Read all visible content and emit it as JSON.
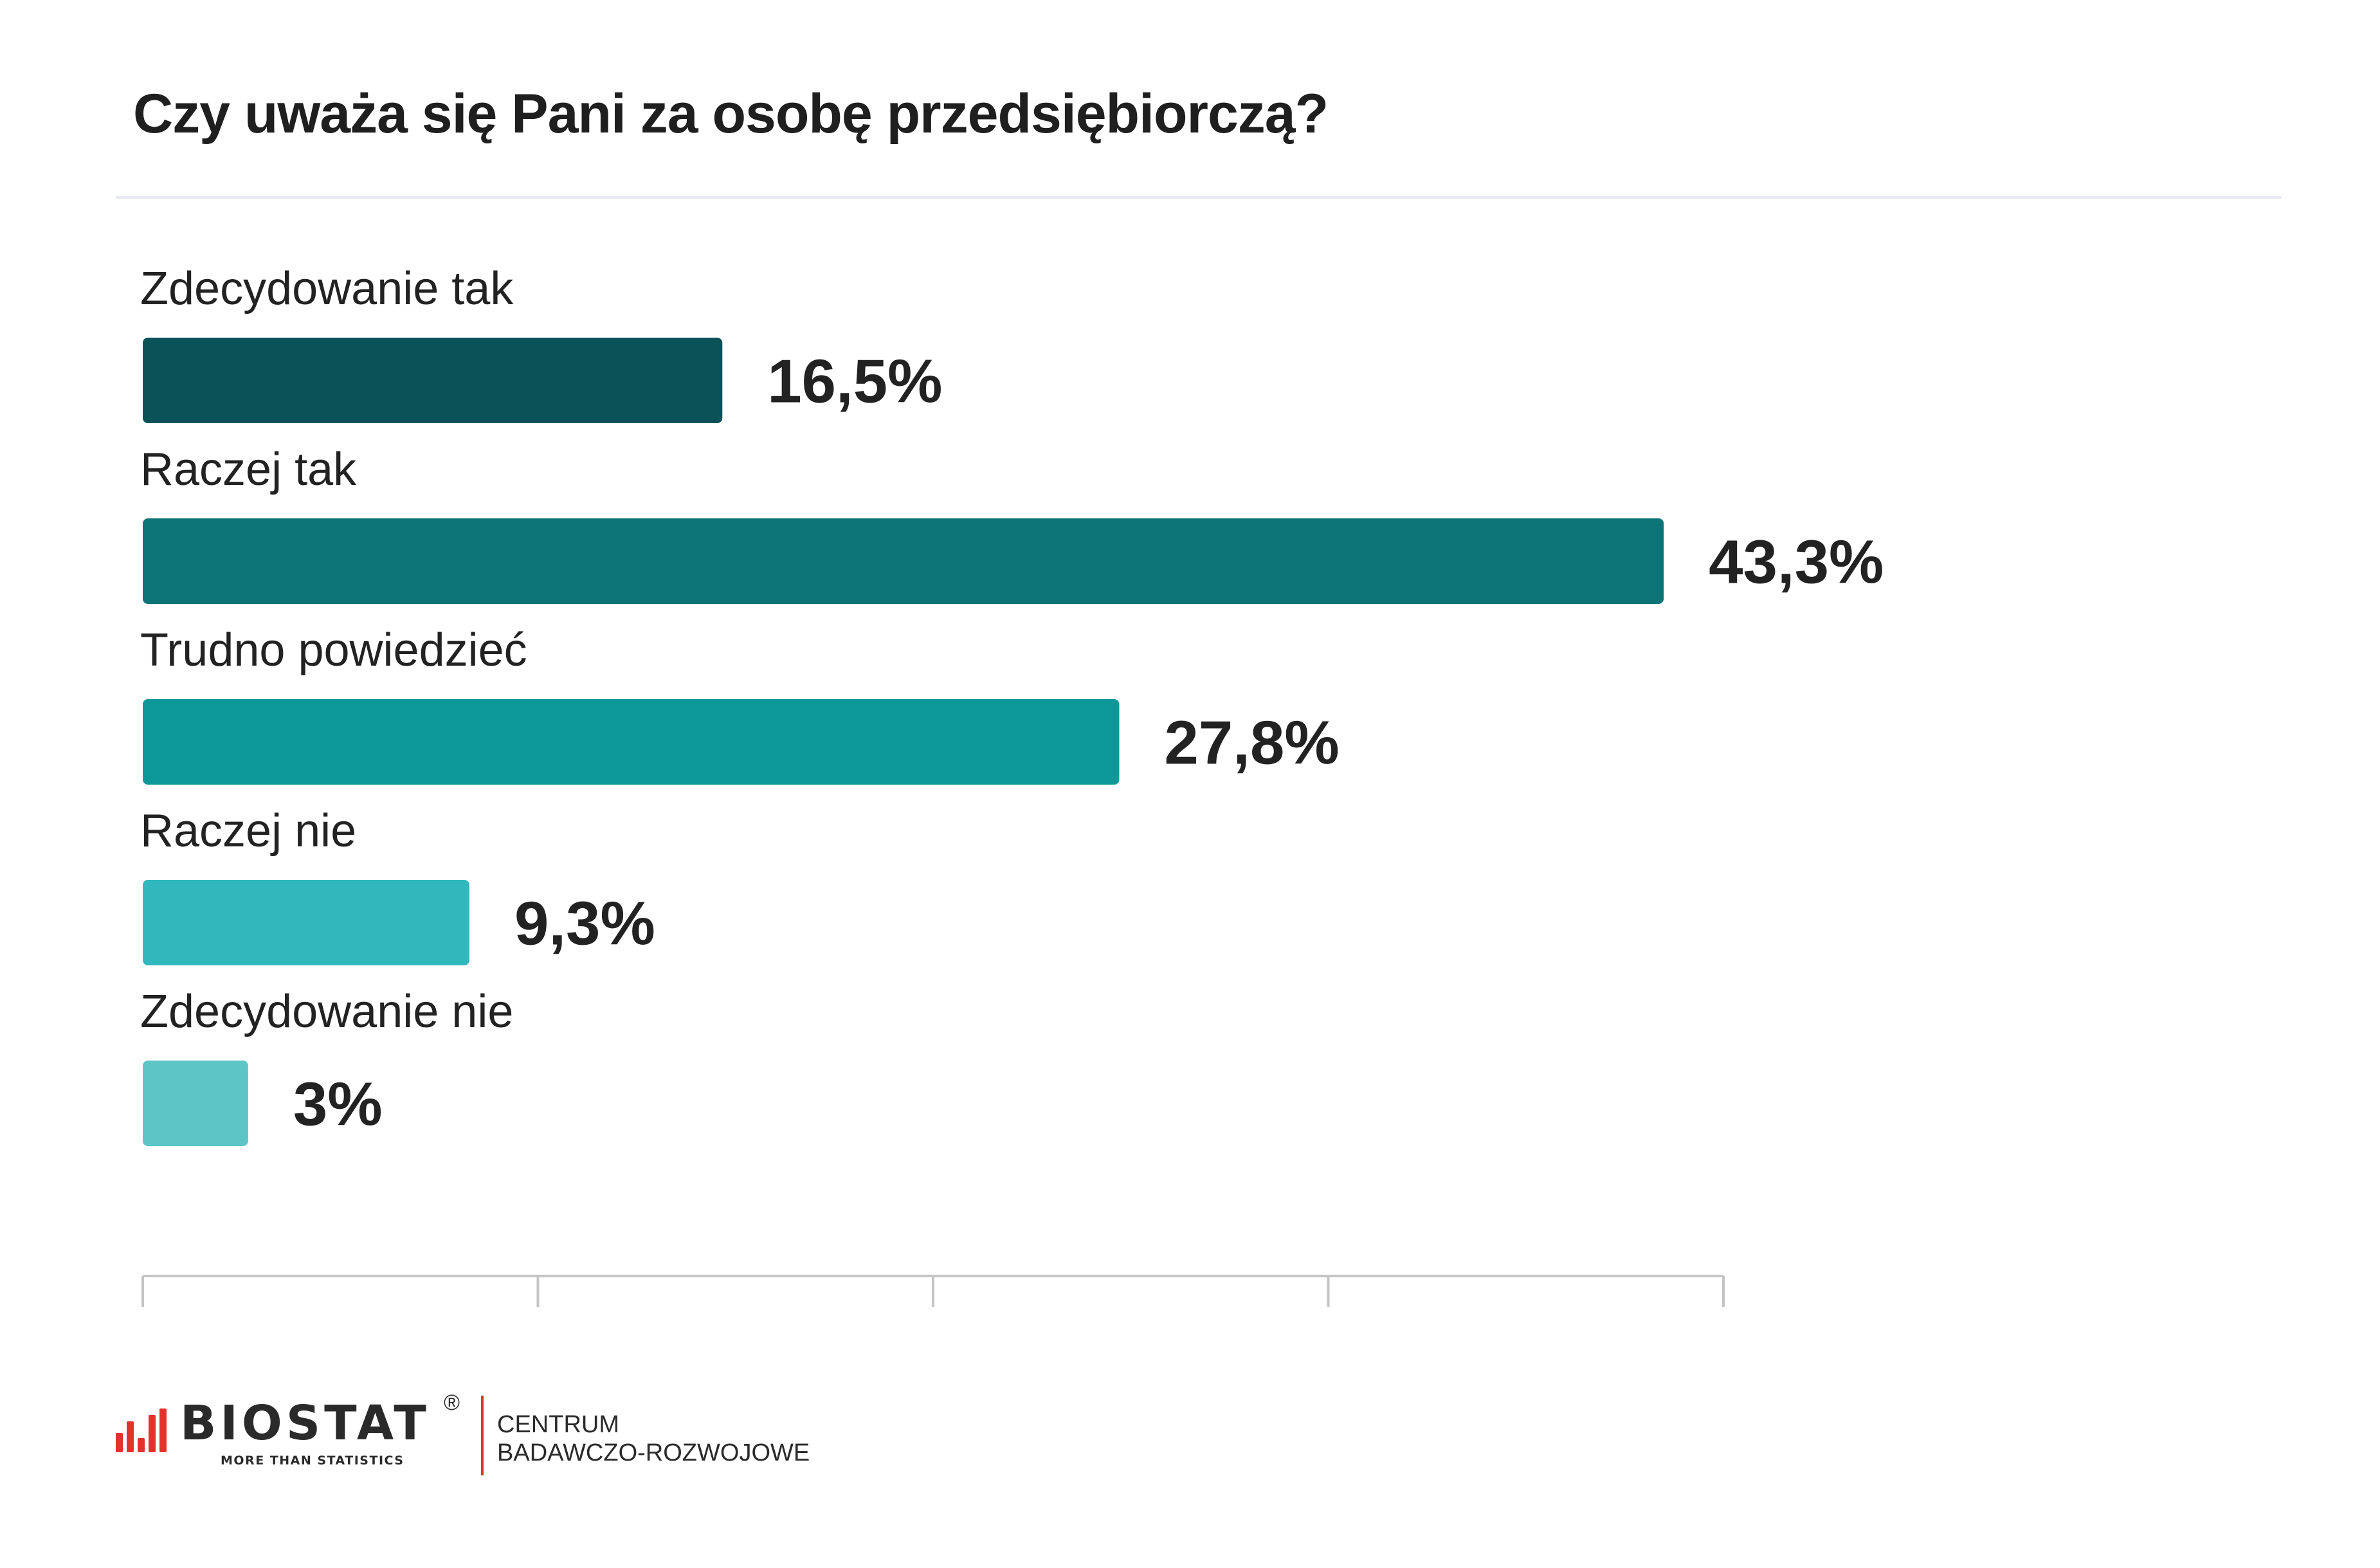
{
  "chart_data": {
    "type": "bar",
    "orientation": "horizontal",
    "title": "Czy uważa się Pani za osobę przedsiębiorczą?",
    "categories": [
      "Zdecydowanie tak",
      "Raczej tak",
      "Trudno powiedzieć",
      "Raczej nie",
      "Zdecydowanie nie"
    ],
    "values": [
      16.5,
      43.3,
      27.8,
      9.3,
      3
    ],
    "value_labels": [
      "16,5%",
      "43,3%",
      "27,8%",
      "9,3%",
      "3%"
    ],
    "xlim": [
      0,
      45
    ],
    "grid": false,
    "legend": "none",
    "colors": [
      "#0a5257",
      "#0c7476",
      "#0c9898",
      "#31b8bc",
      "#5ec5c7"
    ]
  },
  "footer": {
    "brand": "BIOSTAT",
    "registered": "®",
    "tagline": "MORE THAN STATISTICS",
    "centre_line1": "CENTRUM",
    "centre_line2": "BADAWCZO-ROZWOJOWE",
    "accent_color": "#e2322b"
  }
}
